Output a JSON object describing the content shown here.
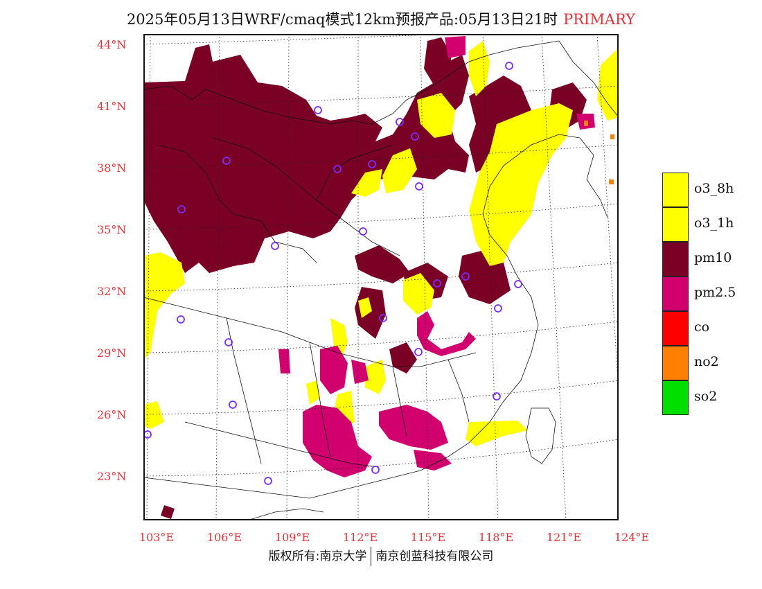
{
  "header": {
    "title": "2025年05月13日WRF/cmaq模式12km预报产品:05月13日21时",
    "tag": "PRIMARY"
  },
  "axes": {
    "lat_ticks": [
      "44°N",
      "41°N",
      "38°N",
      "35°N",
      "32°N",
      "29°N",
      "26°N",
      "23°N"
    ],
    "lon_ticks": [
      "103°E",
      "106°E",
      "109°E",
      "112°E",
      "115°E",
      "118°E",
      "121°E",
      "124°E"
    ]
  },
  "legend": [
    {
      "label": "o3_8h",
      "color": "#ffff00"
    },
    {
      "label": "o3_1h",
      "color": "#ffff00"
    },
    {
      "label": "pm10",
      "color": "#7a0026"
    },
    {
      "label": "pm2.5",
      "color": "#d1006e"
    },
    {
      "label": "co",
      "color": "#ff0000"
    },
    {
      "label": "no2",
      "color": "#ff8000"
    },
    {
      "label": "so2",
      "color": "#00e000"
    }
  ],
  "footer": {
    "left": "版权所有:南京大学",
    "right": "南京创蓝科技有限公司"
  },
  "colors": {
    "axis_label": "#e0343a",
    "station_marker": "#7a2cff"
  },
  "map": {
    "lon_range": [
      103,
      124
    ],
    "lat_range": [
      21,
      44.5
    ],
    "pollutant_regions": [
      {
        "pollutant": "pm10",
        "desc": "north-west and north China"
      },
      {
        "pollutant": "o3_8h",
        "desc": "north China plain and coast"
      },
      {
        "pollutant": "pm2.5",
        "desc": "south China"
      }
    ]
  }
}
